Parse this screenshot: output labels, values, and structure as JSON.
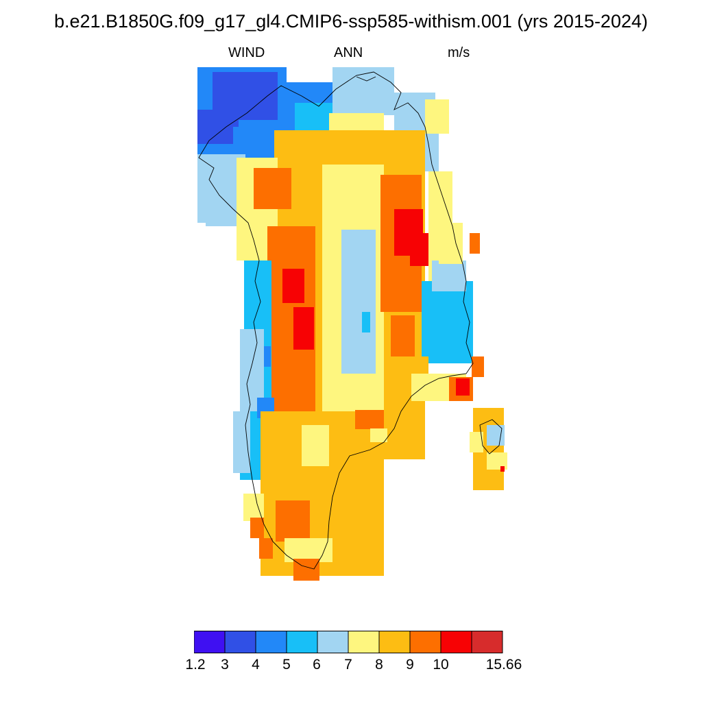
{
  "title": "b.e21.B1850G.f09_g17_gl4.CMIP6-ssp585-withism.001 (yrs 2015-2024)",
  "subtitle": {
    "variable": "WIND",
    "season": "ANN",
    "units": "m/s"
  },
  "legend": {
    "placement": "bottom-center",
    "colors": [
      "#3f10f2",
      "#3050e6",
      "#2288f8",
      "#18bff7",
      "#a2d5f2",
      "#fef67f",
      "#fdbd13",
      "#fd6f00",
      "#f70204",
      "#d72c2c"
    ],
    "labels": [
      "1.2",
      "3",
      "4",
      "5",
      "6",
      "7",
      "8",
      "9",
      "10",
      "15.66"
    ]
  },
  "map": {
    "region": "Greenland",
    "field": "annual mean wind speed",
    "colors": {
      "c2": "#3050e6",
      "c3": "#2288f8",
      "c4": "#18bff7",
      "c5": "#a2d5f2",
      "c6": "#fef67f",
      "c7": "#fdbd13",
      "c8": "#fd6f00",
      "c9": "#f70204"
    }
  }
}
